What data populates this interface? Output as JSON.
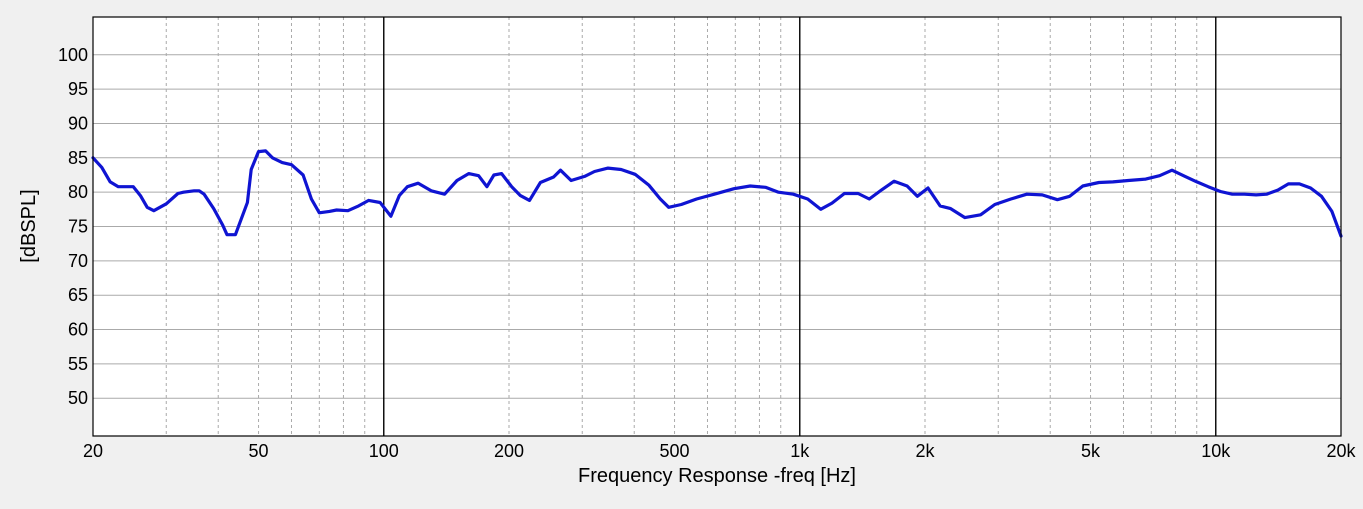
{
  "chart_data": {
    "type": "line",
    "xlabel": "Frequency Response -freq [Hz]",
    "ylabel": "[dBSPL]",
    "x_scale": "log",
    "xlim": [
      20,
      20000
    ],
    "ylim": [
      44.5,
      105.5
    ],
    "x_ticks": [
      {
        "value": 20,
        "label": "20"
      },
      {
        "value": 50,
        "label": "50"
      },
      {
        "value": 100,
        "label": "100"
      },
      {
        "value": 200,
        "label": "200"
      },
      {
        "value": 500,
        "label": "500"
      },
      {
        "value": 1000,
        "label": "1k"
      },
      {
        "value": 2000,
        "label": "2k"
      },
      {
        "value": 5000,
        "label": "5k"
      },
      {
        "value": 10000,
        "label": "10k"
      },
      {
        "value": 20000,
        "label": "20k"
      }
    ],
    "y_ticks": [
      {
        "value": 100,
        "label": "100"
      },
      {
        "value": 95,
        "label": "95"
      },
      {
        "value": 90,
        "label": "90"
      },
      {
        "value": 85,
        "label": "85"
      },
      {
        "value": 80,
        "label": "80"
      },
      {
        "value": 75,
        "label": "75"
      },
      {
        "value": 70,
        "label": "70"
      },
      {
        "value": 65,
        "label": "65"
      },
      {
        "value": 60,
        "label": "60"
      },
      {
        "value": 55,
        "label": "55"
      },
      {
        "value": 50,
        "label": "50"
      }
    ],
    "grid": {
      "major_x": [
        100,
        1000,
        10000
      ],
      "minor_x": "dashed",
      "horizontal": "solid"
    },
    "colors": {
      "line": "#0f14d2",
      "background": "#ffffff",
      "major_grid": "#000000",
      "minor_grid": "#aaaaaa"
    },
    "series": [
      {
        "x": [
          20,
          21,
          22,
          23,
          25,
          26,
          27,
          28,
          30,
          32,
          33,
          35,
          36,
          37,
          39,
          41,
          42,
          44,
          47,
          48,
          50,
          52,
          54,
          57,
          60,
          64,
          67,
          70,
          74,
          77,
          82,
          87,
          92,
          98,
          104,
          109,
          114,
          121,
          130,
          140,
          150,
          160,
          169,
          177,
          184,
          192,
          203,
          213,
          224,
          238,
          256,
          266,
          282,
          304,
          321,
          346,
          372,
          402,
          434,
          462,
          484,
          519,
          565,
          623,
          695,
          760,
          827,
          889,
          965,
          1045,
          1123,
          1195,
          1280,
          1381,
          1469,
          1579,
          1686,
          1811,
          1917,
          2034,
          2174,
          2304,
          2494,
          2720,
          2943,
          3218,
          3513,
          3827,
          4162,
          4455,
          4790,
          5236,
          5658,
          6162,
          6785,
          7329,
          7847,
          8439,
          9008,
          9592,
          10260,
          10950,
          11720,
          12500,
          13250,
          14100,
          14950,
          15890,
          16900,
          17950,
          19020,
          20000
        ],
        "y": [
          85,
          83.6,
          81.5,
          80.8,
          80.8,
          79.5,
          77.8,
          77.3,
          78.3,
          79.8,
          80,
          80.2,
          80.2,
          79.7,
          77.6,
          75.2,
          73.8,
          73.8,
          78.5,
          83.3,
          85.9,
          86,
          85,
          84.3,
          84,
          82.5,
          79,
          77,
          77.2,
          77.4,
          77.3,
          78,
          78.8,
          78.5,
          76.5,
          79.5,
          80.8,
          81.3,
          80.2,
          79.7,
          81.7,
          82.7,
          82.4,
          80.8,
          82.5,
          82.7,
          80.8,
          79.5,
          78.8,
          81.4,
          82.2,
          83.2,
          81.7,
          82.3,
          83,
          83.5,
          83.3,
          82.6,
          81,
          79,
          77.8,
          78.2,
          79,
          79.7,
          80.5,
          80.9,
          80.7,
          80,
          79.7,
          79,
          77.5,
          78.4,
          79.8,
          79.8,
          79,
          80.4,
          81.6,
          80.9,
          79.4,
          80.6,
          78,
          77.6,
          76.3,
          76.7,
          78.2,
          79,
          79.7,
          79.6,
          78.9,
          79.4,
          80.9,
          81.4,
          81.5,
          81.7,
          81.9,
          82.4,
          83.2,
          82.3,
          81.5,
          80.8,
          80.1,
          79.7,
          79.7,
          79.6,
          79.7,
          80.3,
          81.2,
          81.2,
          80.6,
          79.4,
          77.2,
          73.6
        ]
      }
    ]
  }
}
